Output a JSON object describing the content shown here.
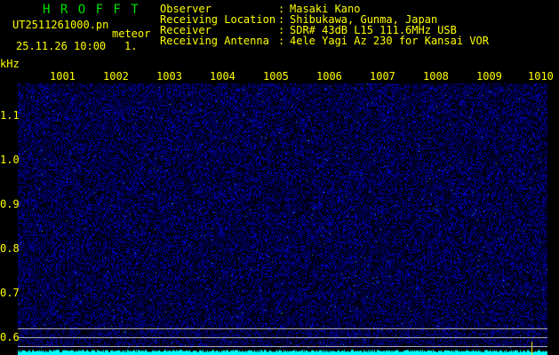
{
  "header": {
    "title": "H R O F F T",
    "filename": "UT2511261000.pn",
    "suffix": "meteor",
    "datetime": "25.11.26 10:00",
    "count": "1.",
    "fields": [
      {
        "label": "Observer",
        "value": "Masaki Kano"
      },
      {
        "label": "Receiving Location",
        "value": "Shibukawa, Gunma, Japan"
      },
      {
        "label": "Receiver",
        "value": "SDR# 43dB L15 111.6MHz USB"
      },
      {
        "label": "Receiving Antenna",
        "value": "4ele Yagi Az 230 for Kansai VOR"
      }
    ]
  },
  "axes": {
    "y_unit": "kHz",
    "x_ticks": [
      "1001",
      "1002",
      "1003",
      "1004",
      "1005",
      "1006",
      "1007",
      "1008",
      "1009",
      "1010"
    ],
    "y_ticks": [
      "1.1",
      "1.0",
      "0.9",
      "0.8",
      "0.7",
      "0.6"
    ]
  },
  "colors": {
    "text": "#ffff00",
    "title": "#00e000",
    "noise": "#1010c0",
    "baseline": "#00ffff"
  }
}
